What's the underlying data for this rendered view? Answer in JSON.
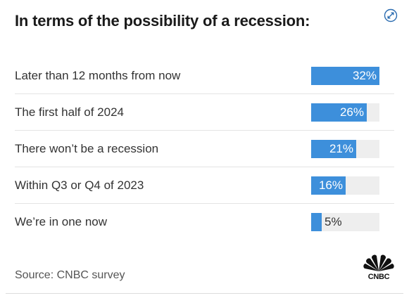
{
  "title": "In terms of the possibility of a recession:",
  "icons": {
    "expand": "expand-arrows-icon",
    "logo": "peacock-logo"
  },
  "colors": {
    "bar": "#3d8fdb",
    "track": "#eeeeee"
  },
  "chart_data": {
    "type": "bar",
    "orientation": "horizontal",
    "title": "In terms of the possibility of a recession:",
    "categories": [
      "Later than 12 months from now",
      "The first half of 2024",
      "There won’t be a recession",
      "Within Q3 or Q4 of 2023",
      "We’re in one now"
    ],
    "values": [
      32,
      26,
      21,
      16,
      5
    ],
    "value_labels": [
      "32%",
      "26%",
      "21%",
      "16%",
      "5%"
    ],
    "xlim": [
      0,
      32
    ],
    "grid": false,
    "legend": "none"
  },
  "source": "Source: CNBC survey",
  "logo_text": "CNBC"
}
